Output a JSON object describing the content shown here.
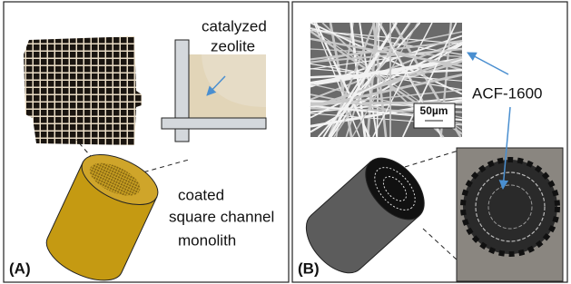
{
  "panel_a": {
    "label": "(A)",
    "zeolite_label": [
      "catalyzed",
      "zeolite"
    ],
    "monolith_label": [
      "coated",
      "square channel",
      "monolith"
    ]
  },
  "panel_b": {
    "label": "(B)",
    "scale_bar": "50µm",
    "material_label": "ACF-1600"
  }
}
